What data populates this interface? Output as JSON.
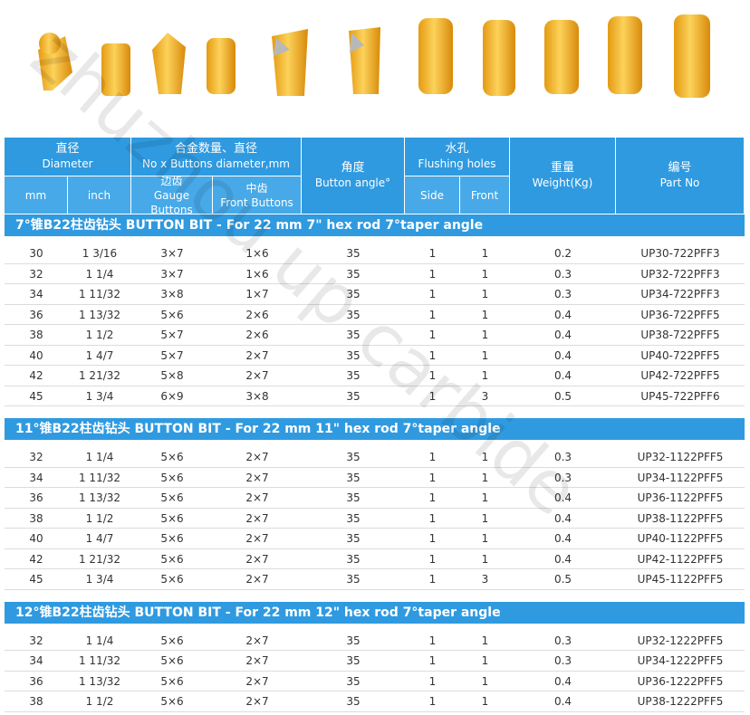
{
  "header": {
    "groups": [
      {
        "lines": [
          "直径",
          "Diameter"
        ],
        "subs": [
          [
            "mm"
          ],
          [
            "inch"
          ]
        ]
      },
      {
        "lines": [
          "合金数量、直径",
          "No x Buttons diameter,mm"
        ],
        "subs": [
          [
            "边齿",
            "Gauge Buttons"
          ],
          [
            "中齿",
            "Front Buttons"
          ]
        ]
      },
      {
        "lines": [
          "角度",
          "Button angle°"
        ]
      },
      {
        "lines": [
          "水孔",
          "Flushing holes"
        ],
        "subs": [
          [
            "Side"
          ],
          [
            "Front"
          ]
        ]
      },
      {
        "lines": [
          "重量",
          "Weight(Kg)"
        ]
      },
      {
        "lines": [
          "编号",
          "Part No"
        ]
      }
    ]
  },
  "sections": [
    {
      "title": "7°锥B22柱齿钻头 BUTTON BIT - For 22 mm 7\" hex rod 7°taper angle",
      "rows": [
        [
          "30",
          "1 3/16",
          "3×7",
          "1×6",
          "35",
          "1",
          "1",
          "0.2",
          "UP30-722PFF3"
        ],
        [
          "32",
          "1 1/4",
          "3×7",
          "1×6",
          "35",
          "1",
          "1",
          "0.3",
          "UP32-722PFF3"
        ],
        [
          "34",
          "1 11/32",
          "3×8",
          "1×7",
          "35",
          "1",
          "1",
          "0.3",
          "UP34-722PFF3"
        ],
        [
          "36",
          "1 13/32",
          "5×6",
          "2×6",
          "35",
          "1",
          "1",
          "0.4",
          "UP36-722PFF5"
        ],
        [
          "38",
          "1 1/2",
          "5×7",
          "2×6",
          "35",
          "1",
          "1",
          "0.4",
          "UP38-722PFF5"
        ],
        [
          "40",
          "1 4/7",
          "5×7",
          "2×7",
          "35",
          "1",
          "1",
          "0.4",
          "UP40-722PFF5"
        ],
        [
          "42",
          "1 21/32",
          "5×8",
          "2×7",
          "35",
          "1",
          "1",
          "0.4",
          "UP42-722PFF5"
        ],
        [
          "45",
          "1 3/4",
          "6×9",
          "3×8",
          "35",
          "1",
          "3",
          "0.5",
          "UP45-722PFF6"
        ]
      ]
    },
    {
      "title": "11°锥B22柱齿钻头 BUTTON BIT - For 22 mm 11\" hex rod 7°taper angle",
      "rows": [
        [
          "32",
          "1 1/4",
          "5×6",
          "2×7",
          "35",
          "1",
          "1",
          "0.3",
          "UP32-1122PFF5"
        ],
        [
          "34",
          "1 11/32",
          "5×6",
          "2×7",
          "35",
          "1",
          "1",
          "0.3",
          "UP34-1122PFF5"
        ],
        [
          "36",
          "1 13/32",
          "5×6",
          "2×7",
          "35",
          "1",
          "1",
          "0.4",
          "UP36-1122PFF5"
        ],
        [
          "38",
          "1 1/2",
          "5×6",
          "2×7",
          "35",
          "1",
          "1",
          "0.4",
          "UP38-1122PFF5"
        ],
        [
          "40",
          "1 4/7",
          "5×6",
          "2×7",
          "35",
          "1",
          "1",
          "0.4",
          "UP40-1122PFF5"
        ],
        [
          "42",
          "1 21/32",
          "5×6",
          "2×7",
          "35",
          "1",
          "1",
          "0.4",
          "UP42-1122PFF5"
        ],
        [
          "45",
          "1 3/4",
          "5×6",
          "2×7",
          "35",
          "1",
          "3",
          "0.5",
          "UP45-1122PFF5"
        ]
      ]
    },
    {
      "title": "12°锥B22柱齿钻头 BUTTON BIT - For 22 mm 12\" hex rod 7°taper angle",
      "rows": [
        [
          "32",
          "1 1/4",
          "5×6",
          "2×7",
          "35",
          "1",
          "1",
          "0.3",
          "UP32-1222PFF5"
        ],
        [
          "34",
          "1 11/32",
          "5×6",
          "2×7",
          "35",
          "1",
          "1",
          "0.3",
          "UP34-1222PFF5"
        ],
        [
          "36",
          "1 13/32",
          "5×6",
          "2×7",
          "35",
          "1",
          "1",
          "0.4",
          "UP36-1222PFF5"
        ],
        [
          "38",
          "1 1/2",
          "5×6",
          "2×7",
          "35",
          "1",
          "1",
          "0.4",
          "UP38-1222PFF5"
        ]
      ]
    }
  ],
  "watermark": "zhuzhou up carbide"
}
